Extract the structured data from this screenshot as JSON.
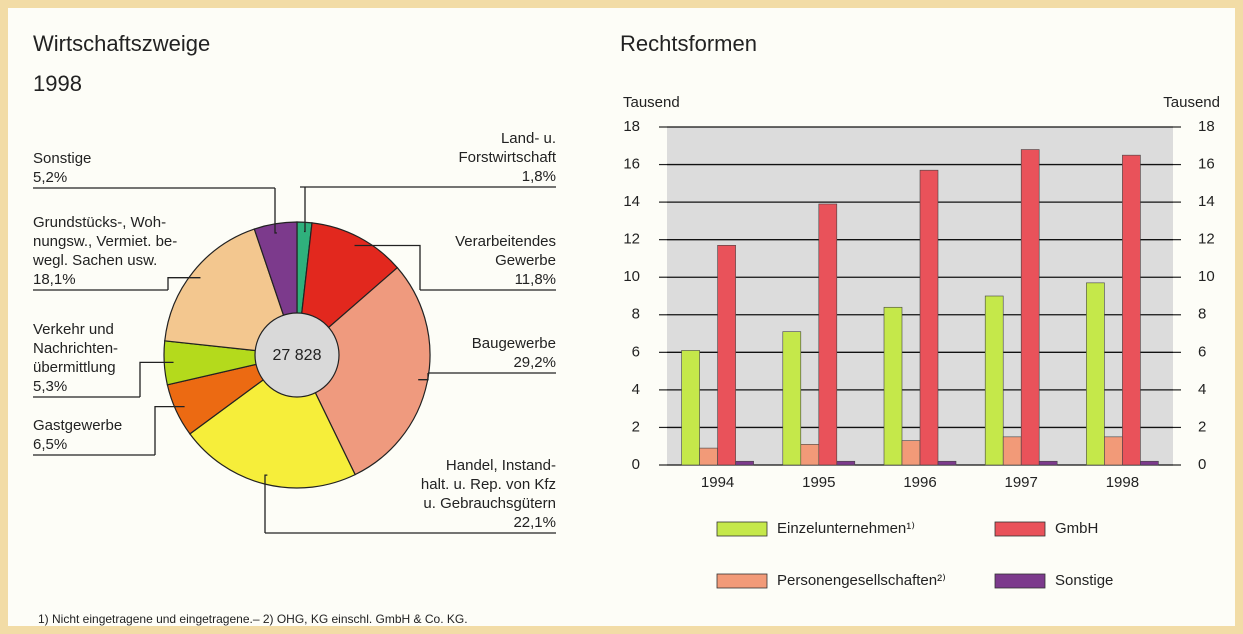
{
  "chart_data": [
    {
      "type": "pie",
      "title": "Wirtschaftszweige",
      "subtitle": "1998",
      "center_label": "27 828",
      "categories": [
        "Land- u.\nForstwirtschaft",
        "Verarbeitendes\nGewerbe",
        "Baugewerbe",
        "Handel, Instand-\nhalt. u. Rep. von Kfz\nu. Gebrauchsgütern",
        "Gastgewerbe",
        "Verkehr und\nNachrichten-\nübermittlung",
        "Grundstücks-, Woh-\nnungsw., Vermiet. be-\nwegl. Sachen usw.",
        "Sonstige"
      ],
      "values": [
        1.8,
        11.8,
        29.2,
        22.1,
        6.5,
        5.3,
        18.1,
        5.2
      ],
      "value_labels": [
        "1,8%",
        "11,8%",
        "29,2%",
        "22,1%",
        "6,5%",
        "5,3%",
        "18,1%",
        "5,2%"
      ],
      "colors": [
        "#2fb07c",
        "#e2281e",
        "#ef9a7e",
        "#f6ee3a",
        "#ec6a12",
        "#b4da1c",
        "#f3c78f",
        "#7c3a8c"
      ]
    },
    {
      "type": "bar",
      "title": "Rechtsformen",
      "y_label": "Tausend",
      "y2_label": "Tausend",
      "categories": [
        "1994",
        "1995",
        "1996",
        "1997",
        "1998"
      ],
      "series": [
        {
          "name": "Einzelunternehmen¹⁾",
          "color": "#c5e84a",
          "values": [
            6.1,
            7.1,
            8.4,
            9.0,
            9.7
          ]
        },
        {
          "name": "Personengesellschaften²⁾",
          "color": "#f29a78",
          "values": [
            0.9,
            1.1,
            1.3,
            1.5,
            1.5
          ]
        },
        {
          "name": "GmbH",
          "color": "#e9525a",
          "values": [
            11.7,
            13.9,
            15.7,
            16.8,
            16.5
          ]
        },
        {
          "name": "Sonstige",
          "color": "#7c3a8c",
          "values": [
            0.2,
            0.2,
            0.2,
            0.2,
            0.2
          ]
        }
      ],
      "ylim": [
        0,
        18
      ],
      "yticks": [
        0,
        2,
        4,
        6,
        8,
        10,
        12,
        14,
        16,
        18
      ],
      "y2lim": [
        0,
        18
      ],
      "y2ticks": [
        0,
        2,
        4,
        6,
        8,
        10,
        12,
        14,
        16,
        18
      ],
      "grid": true
    }
  ],
  "footnote": "1) Nicht eingetragene und eingetragene.– 2) OHG, KG einschl. GmbH & Co. KG."
}
